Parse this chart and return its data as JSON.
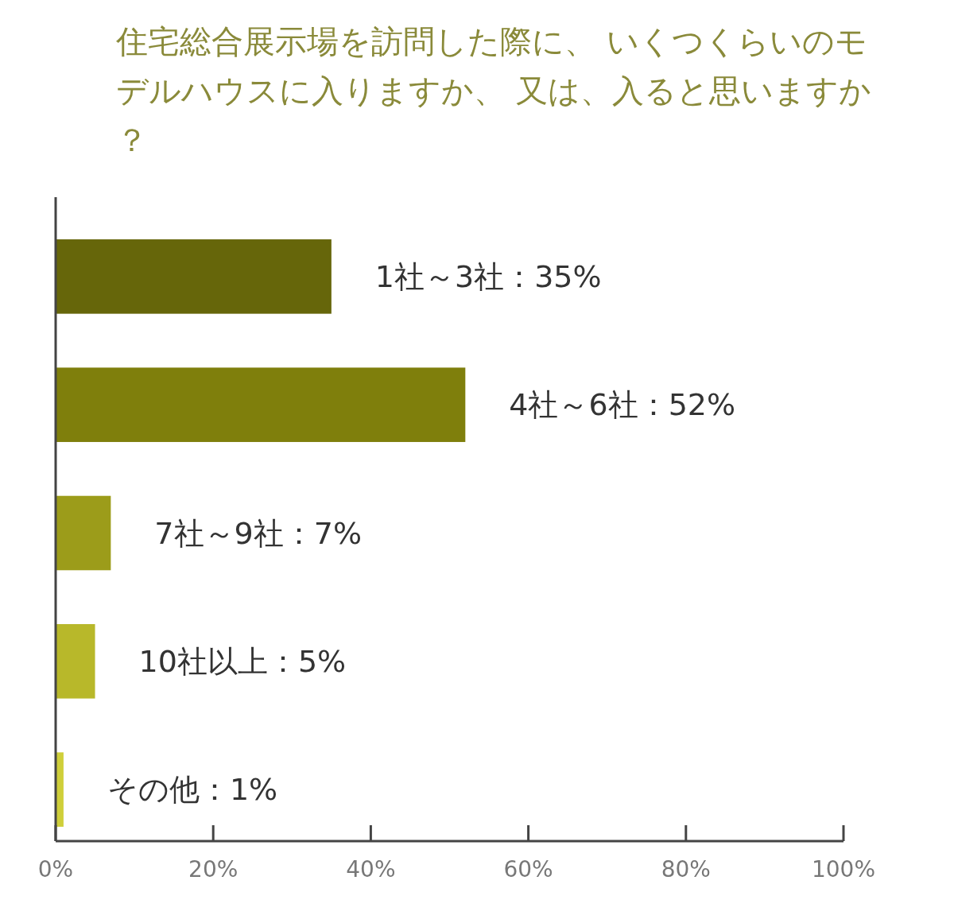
{
  "chart_data": {
    "type": "bar",
    "orientation": "horizontal",
    "title": "住宅総合展示場を訪問した際に、 いくつくらいのモデルハウスに入りますか、 又は、入ると思いますか？",
    "categories": [
      "1社～3社：35%",
      "4社～6社：52%",
      "7社～9社：7%",
      "10社以上：5%",
      "その他：1%"
    ],
    "values": [
      35,
      52,
      7,
      5,
      1
    ],
    "colors": [
      "#66660a",
      "#7f7f0c",
      "#9c9c1a",
      "#b8b82a",
      "#cfcf3a"
    ],
    "xlim": [
      0,
      100
    ],
    "xticks": [
      {
        "value": 0,
        "label": "0%"
      },
      {
        "value": 20,
        "label": "20%"
      },
      {
        "value": 40,
        "label": "40%"
      },
      {
        "value": 60,
        "label": "60%"
      },
      {
        "value": 80,
        "label": "80%"
      },
      {
        "value": 100,
        "label": "100%"
      }
    ],
    "grid": false
  }
}
